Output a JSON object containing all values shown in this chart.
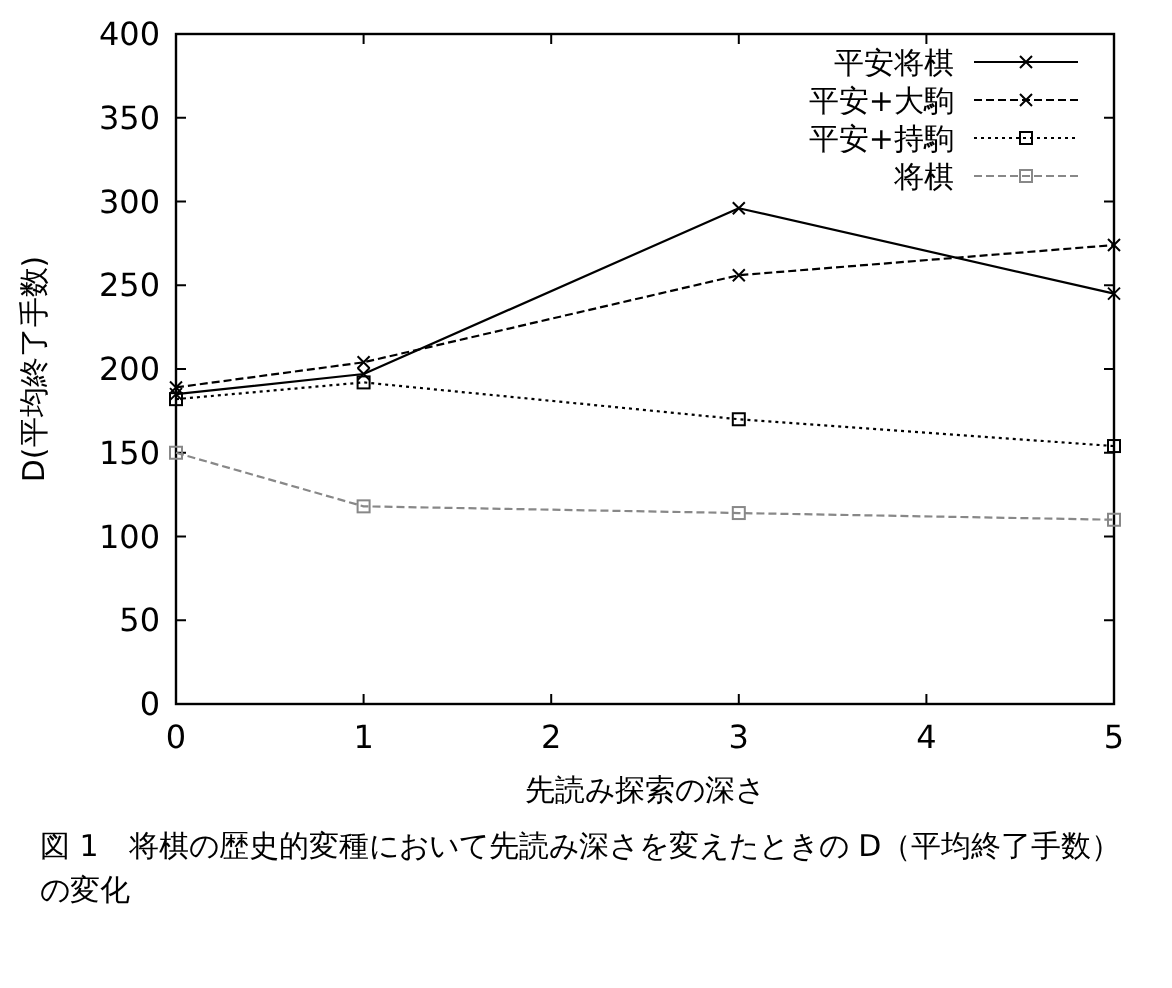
{
  "chart_data": {
    "type": "line",
    "xlabel": "先読み探索の深さ",
    "ylabel": "D(平均終了手数)",
    "annotations": [
      "図 1　将棋の歴史的変種において先読み深さを変えたときの D（平均終了手数）の変化"
    ],
    "x": [
      0,
      1,
      3,
      5
    ],
    "series": [
      {
        "name": "平安将棋",
        "color": "#000000",
        "values": [
          185,
          197,
          296,
          245
        ],
        "marker": "cross",
        "line_style": "solid"
      },
      {
        "name": "平安+大駒",
        "color": "#000000",
        "values": [
          189,
          204,
          256,
          274
        ],
        "marker": "cross",
        "line_style": "dashed"
      },
      {
        "name": "平安+持駒",
        "color": "#000000",
        "values": [
          182,
          192,
          170,
          154
        ],
        "marker": "square",
        "line_style": "dotted"
      },
      {
        "name": "将棋",
        "color": "#888888",
        "values": [
          150,
          118,
          114,
          110
        ],
        "marker": "square",
        "line_style": "dashed"
      }
    ],
    "xlim": [
      0,
      5
    ],
    "xticks": [
      0,
      1,
      2,
      3,
      4,
      5
    ],
    "ylim": [
      0,
      400
    ],
    "yticks": [
      0,
      50,
      100,
      150,
      200,
      250,
      300,
      350,
      400
    ],
    "grid": false,
    "legend": "top right"
  }
}
